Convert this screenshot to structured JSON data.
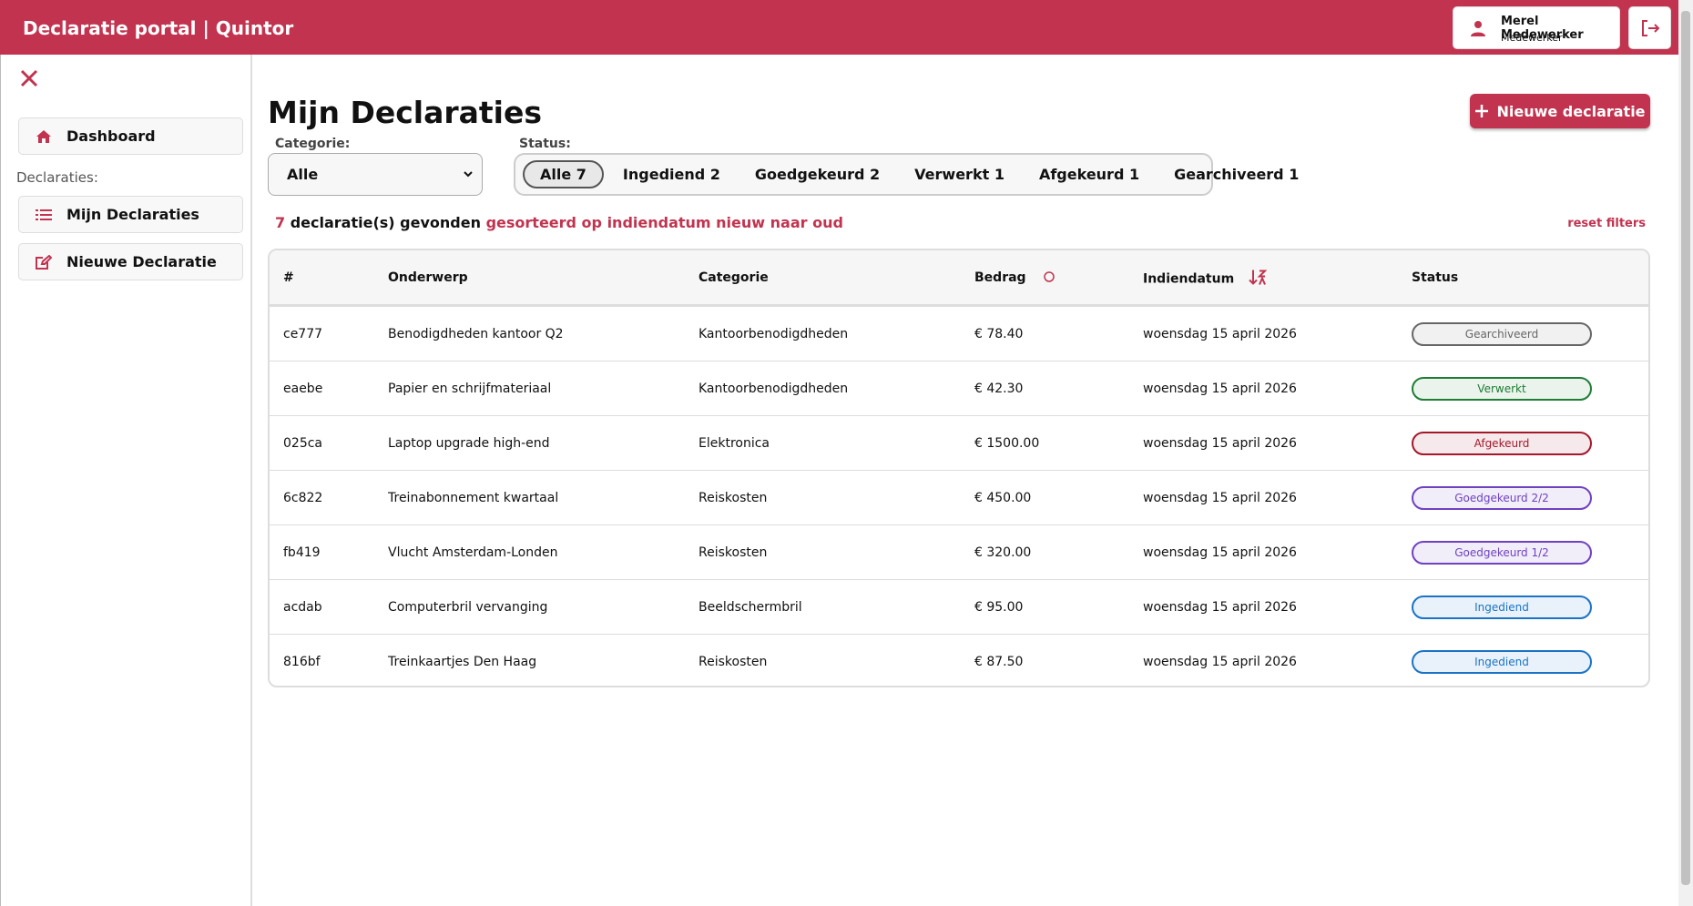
{
  "header": {
    "title": "Declaratie portal | Quintor",
    "user_name": "Merel Medewerker",
    "user_role": "Medewerker"
  },
  "sidebar": {
    "items": [
      "Dashboard",
      "Mijn Declaraties",
      "Nieuwe Declaratie"
    ],
    "section_label": "Declaraties:"
  },
  "main": {
    "title": "Mijn Declaraties",
    "new_button": "Nieuwe declaratie",
    "filters": {
      "category_label": "Categorie:",
      "category_value": "Alle",
      "status_label": "Status:",
      "statuses": [
        {
          "label": "Alle",
          "count": 7
        },
        {
          "label": "Ingediend",
          "count": 2
        },
        {
          "label": "Goedgekeurd",
          "count": 2
        },
        {
          "label": "Verwerkt",
          "count": 1
        },
        {
          "label": "Afgekeurd",
          "count": 1
        },
        {
          "label": "Gearchiveerd",
          "count": 1
        }
      ]
    },
    "summary": {
      "count": 7,
      "text": "declaratie(s) gevonden",
      "sort_text": "gesorteerd op indiendatum nieuw naar oud",
      "reset": "reset filters"
    },
    "table": {
      "headers": [
        "#",
        "Onderwerp",
        "Categorie",
        "Bedrag",
        "Indiendatum",
        "Status"
      ],
      "rows": [
        {
          "id": "ce777",
          "subject": "Benodigdheden kantoor Q2",
          "category": "Kantoorbenodigdheden",
          "amount": "€ 78.40",
          "date": "woensdag 15 april 2026",
          "status": "Gearchiveerd",
          "color": "#666666"
        },
        {
          "id": "eaebe",
          "subject": "Papier en schrijfmateriaal",
          "category": "Kantoorbenodigdheden",
          "amount": "€ 42.30",
          "date": "woensdag 15 april 2026",
          "status": "Verwerkt",
          "color": "#1e7e34"
        },
        {
          "id": "025ca",
          "subject": "Laptop upgrade high-end",
          "category": "Elektronica",
          "amount": "€ 1500.00",
          "date": "woensdag 15 april 2026",
          "status": "Afgekeurd",
          "color": "#a3182b"
        },
        {
          "id": "6c822",
          "subject": "Treinabonnement kwartaal",
          "category": "Reiskosten",
          "amount": "€ 450.00",
          "date": "woensdag 15 april 2026",
          "status": "Goedgekeurd 2/2",
          "color": "#6f42c1"
        },
        {
          "id": "fb419",
          "subject": "Vlucht Amsterdam-Londen",
          "category": "Reiskosten",
          "amount": "€ 320.00",
          "date": "woensdag 15 april 2026",
          "status": "Goedgekeurd 1/2",
          "color": "#6f42c1"
        },
        {
          "id": "acdab",
          "subject": "Computerbril vervanging",
          "category": "Beeldschermbril",
          "amount": "€ 95.00",
          "date": "woensdag 15 april 2026",
          "status": "Ingediend",
          "color": "#1a73c7"
        },
        {
          "id": "816bf",
          "subject": "Treinkaartjes Den Haag",
          "category": "Reiskosten",
          "amount": "€ 87.50",
          "date": "woensdag 15 april 2026",
          "status": "Ingediend",
          "color": "#1a73c7"
        }
      ]
    }
  }
}
